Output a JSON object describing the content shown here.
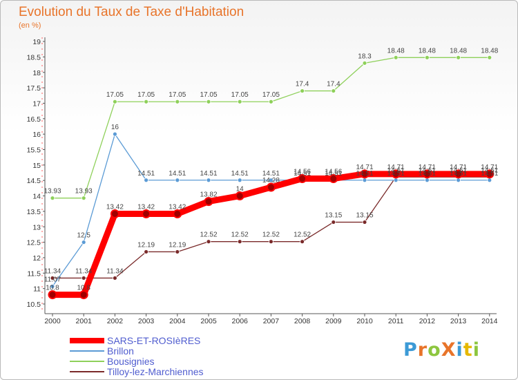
{
  "header": {
    "title": "Evolution du Taux de Taxe d'Habitation",
    "subtitle": "(en %)"
  },
  "logo": {
    "text": "ProXiti",
    "colors": [
      "#3c9ad6",
      "#e8742a",
      "#8dc63f",
      "#e8742a",
      "#3c9ad6",
      "#e6b800",
      "#8dc63f"
    ]
  },
  "chart_data": {
    "type": "line",
    "title": "Evolution du Taux de Taxe d'Habitation",
    "subtitle": "(en %)",
    "xlabel": "",
    "ylabel": "",
    "categories": [
      "2000",
      "2001",
      "2002",
      "2003",
      "2004",
      "2005",
      "2006",
      "2007",
      "2008",
      "2009",
      "2010",
      "2011",
      "2012",
      "2013",
      "2014"
    ],
    "ylim": [
      10.5,
      19
    ],
    "yticks": [
      10.5,
      11,
      11.5,
      12,
      12.5,
      13,
      13.5,
      14,
      14.5,
      15,
      15.5,
      16,
      16.5,
      17,
      17.5,
      18,
      18.5,
      19
    ],
    "grid": false,
    "legend_position": "bottom-left",
    "series": [
      {
        "name": "SARS-ET-ROSIèRES",
        "color": "#ff0000",
        "width": 9,
        "values": [
          10.8,
          10.8,
          13.42,
          13.42,
          13.42,
          13.82,
          14,
          14.28,
          14.56,
          14.56,
          14.71,
          14.71,
          14.71,
          14.71,
          14.71
        ],
        "labels": [
          "10.8",
          "10.8",
          "13.42",
          "13.42",
          "13.42",
          "13.82",
          "14",
          "14.28",
          "14.56",
          "14.56",
          "14.71",
          "14.71",
          "14.71",
          "14.71",
          "14.71"
        ]
      },
      {
        "name": "Brillon",
        "color": "#5b9bd5",
        "width": 1.3,
        "values": [
          11.07,
          12.5,
          16,
          14.51,
          14.51,
          14.51,
          14.51,
          14.51,
          14.51,
          14.51,
          14.51,
          14.51,
          14.51,
          14.51,
          14.51
        ],
        "labels": [
          "11.07",
          "12.5",
          "16",
          "14.51",
          "14.51",
          "14.51",
          "14.51",
          "14.51",
          "14.51",
          "14.51",
          "14.51",
          "14.51",
          "14.51",
          "14.51",
          "14.51"
        ]
      },
      {
        "name": "Bousignies",
        "color": "#8ed05a",
        "width": 1.3,
        "values": [
          13.93,
          13.93,
          17.05,
          17.05,
          17.05,
          17.05,
          17.05,
          17.05,
          17.4,
          17.4,
          18.3,
          18.48,
          18.48,
          18.48,
          18.48
        ],
        "labels": [
          "13.93",
          "13.93",
          "17.05",
          "17.05",
          "17.05",
          "17.05",
          "17.05",
          "17.05",
          "17.4",
          "17.4",
          "18.3",
          "18.48",
          "18.48",
          "18.48",
          "18.48"
        ]
      },
      {
        "name": "Tilloy-lez-Marchiennes",
        "color": "#7a2a2a",
        "width": 1.3,
        "values": [
          11.34,
          11.34,
          11.34,
          12.19,
          12.19,
          12.52,
          12.52,
          12.52,
          12.52,
          13.15,
          13.15,
          14.61,
          14.61,
          14.61,
          14.61
        ],
        "labels": [
          "11.34",
          "11.34",
          "11.34",
          "12.19",
          "12.19",
          "12.52",
          "12.52",
          "12.52",
          "12.52",
          "13.15",
          "13.15",
          "14.61",
          "14.61",
          "14.61",
          "14.61"
        ]
      }
    ]
  }
}
